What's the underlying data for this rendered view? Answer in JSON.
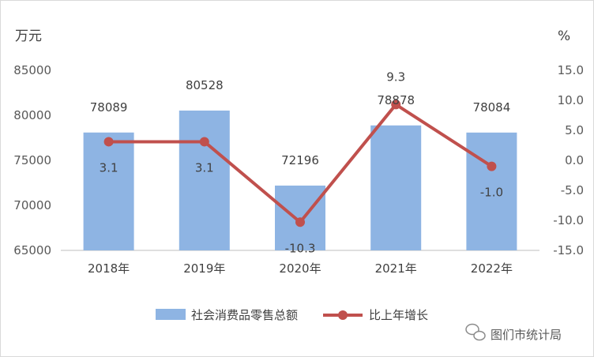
{
  "chart_data": {
    "type": "bar+line",
    "categories": [
      "2018年",
      "2019年",
      "2020年",
      "2021年",
      "2022年"
    ],
    "series": [
      {
        "name": "社会消费品零售总额",
        "type": "bar",
        "axis": "left",
        "values": [
          78089,
          80528,
          72196,
          78878,
          78084
        ],
        "color": "#8eb4e3"
      },
      {
        "name": "比上年增长",
        "type": "line",
        "axis": "right",
        "values": [
          3.1,
          3.1,
          -10.3,
          9.3,
          -1.0
        ],
        "color": "#c0504d"
      }
    ],
    "bar_labels": [
      "78089",
      "80528",
      "72196",
      "78878",
      "78084"
    ],
    "line_labels": [
      "3.1",
      "3.1",
      "-10.3",
      "9.3",
      "-1.0"
    ],
    "y_left": {
      "unit": "万元",
      "range": [
        65000,
        85000
      ],
      "ticks": [
        "65000",
        "70000",
        "75000",
        "80000",
        "85000"
      ]
    },
    "y_right": {
      "unit": "%",
      "range": [
        -15,
        15
      ],
      "ticks": [
        "-15.0",
        "-10.0",
        "-5.0",
        "0.0",
        "5.0",
        "10.0",
        "15.0"
      ]
    },
    "grid": false,
    "legend_position": "bottom"
  },
  "watermark": {
    "text": "图们市统计局",
    "icon": "wechat-icon"
  }
}
